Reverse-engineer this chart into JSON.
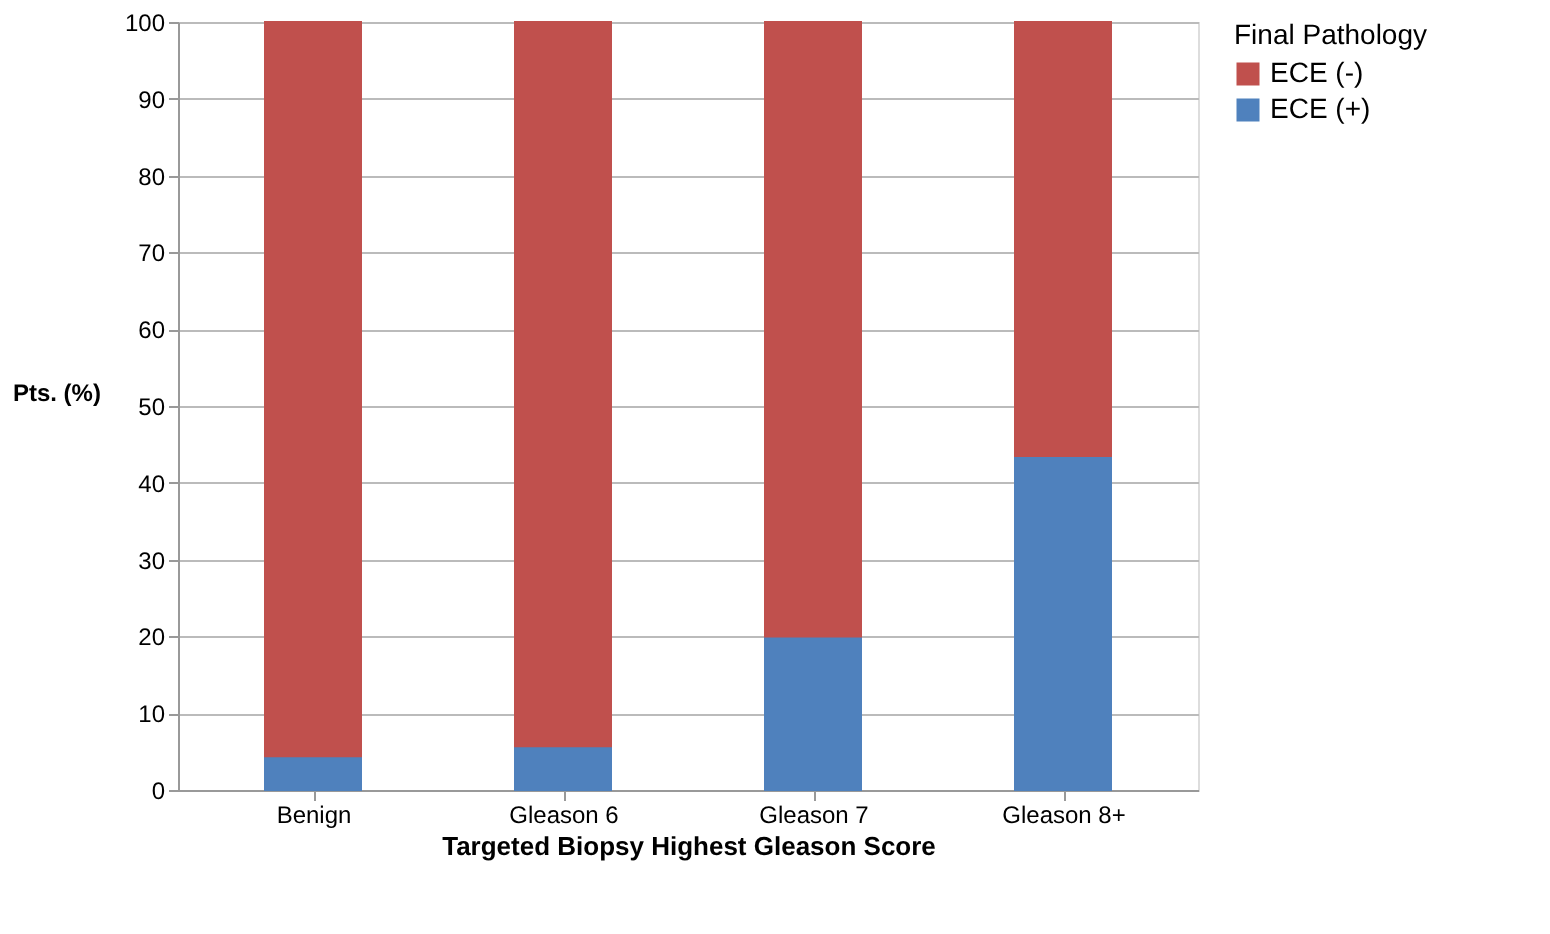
{
  "chart_data": {
    "type": "bar",
    "stacked": true,
    "xlabel": "Targeted Biopsy Highest Gleason Score",
    "ylabel": "Pts. (%)",
    "legend_title": "Final Pathology",
    "legend": "right",
    "grid": "y",
    "categories": [
      "Benign",
      "Gleason 6",
      "Gleason 7",
      "Gleason 8+"
    ],
    "series": [
      {
        "name": "ECE (+)",
        "color": "#4f81bd",
        "values": [
          4.4,
          5.7,
          20,
          43.5
        ]
      },
      {
        "name": "ECE (-)",
        "color": "#c0504d",
        "values": [
          95.6,
          94.3,
          80,
          56.5
        ]
      }
    ],
    "ylim": [
      0,
      100
    ],
    "yticks": [
      0,
      10,
      20,
      30,
      40,
      50,
      60,
      70,
      80,
      90,
      100
    ]
  }
}
